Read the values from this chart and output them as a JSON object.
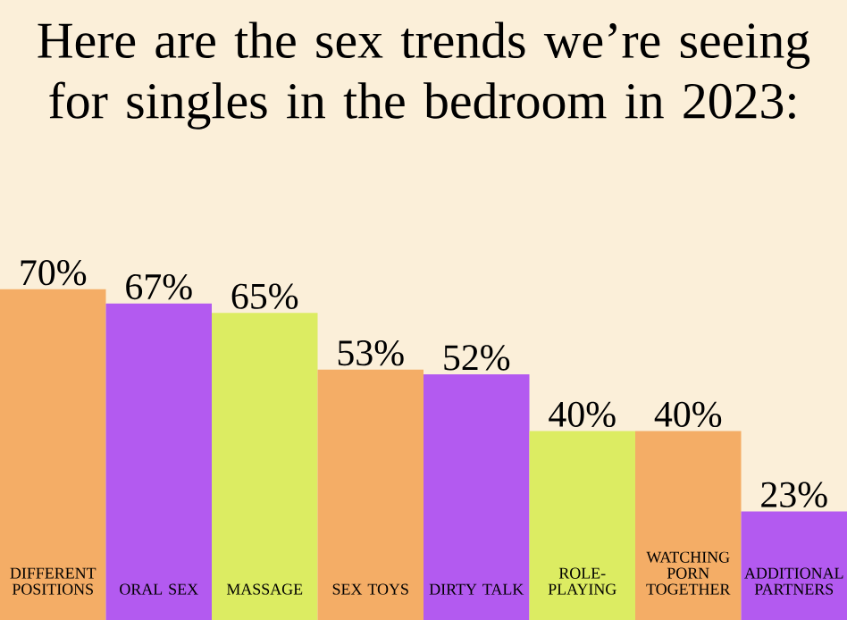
{
  "chart_data": {
    "type": "bar",
    "title": "Here are the sex trends we’re seeing for singles in the bedroom in 2023:",
    "categories": [
      "DIFFERENT POSITIONS",
      "ORAL SEX",
      "MASSAGE",
      "SEX TOYS",
      "DIRTY TALK",
      "ROLE-PLAYING",
      "WATCHING PORN TOGETHER",
      "ADDITIONAL PARTNERS"
    ],
    "values": [
      70,
      67,
      65,
      53,
      52,
      40,
      40,
      23
    ],
    "value_labels": [
      "70%",
      "67%",
      "65%",
      "53%",
      "52%",
      "40%",
      "40%",
      "23%"
    ],
    "colors": [
      "#f4ad66",
      "#b35af0",
      "#dcec62",
      "#f4ad66",
      "#b35af0",
      "#dcec62",
      "#f4ad66",
      "#b35af0"
    ]
  }
}
